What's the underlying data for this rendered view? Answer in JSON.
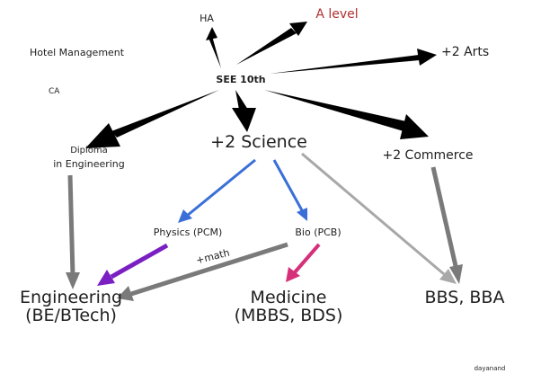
{
  "labels": {
    "ha": "HA",
    "a_level": "A level",
    "hotel_management": "Hotel Management",
    "ca": "CA",
    "see10": "SEE 10th",
    "plus2_arts": "+2 Arts",
    "plus2_science": "+2 Science",
    "diploma_line1": "Diploma",
    "diploma_line2": "in Engineering",
    "plus2_commerce": "+2 Commerce",
    "physics": "Physics (PCM)",
    "bio": "Bio (PCB)",
    "plus_math": "+math",
    "engineering_line1": "Engineering",
    "engineering_line2": "(BE/BTech)",
    "medicine_line1": "Medicine",
    "medicine_line2": "(MBBS, BDS)",
    "bbs": "BBS, BBA",
    "signature": "dayanand"
  },
  "colors": {
    "text": "#1e1e1e",
    "a_level": "#b03030",
    "black_arrow": "#000000",
    "blue_arrow": "#3a6fd8",
    "purple_arrow": "#7a1fc2",
    "pink_arrow": "#d6307a",
    "gray_arrow": "#7a7a7a",
    "light_gray_arrow": "#a8a8a8"
  },
  "edges": [
    {
      "from": "SEE 10th",
      "to": "HA",
      "color": "black_arrow"
    },
    {
      "from": "SEE 10th",
      "to": "A level",
      "color": "black_arrow"
    },
    {
      "from": "SEE 10th",
      "to": "+2 Arts",
      "color": "black_arrow"
    },
    {
      "from": "SEE 10th",
      "to": "Diploma in Engineering",
      "color": "black_arrow"
    },
    {
      "from": "SEE 10th",
      "to": "+2 Science",
      "color": "black_arrow"
    },
    {
      "from": "SEE 10th",
      "to": "+2 Commerce",
      "color": "black_arrow"
    },
    {
      "from": "+2 Science",
      "to": "Physics (PCM)",
      "color": "blue_arrow"
    },
    {
      "from": "+2 Science",
      "to": "Bio (PCB)",
      "color": "blue_arrow"
    },
    {
      "from": "+2 Science",
      "to": "BBS, BBA",
      "color": "light_gray_arrow"
    },
    {
      "from": "Physics (PCM)",
      "to": "Engineering (BE/BTech)",
      "color": "purple_arrow"
    },
    {
      "from": "Bio (PCB)",
      "to": "Engineering (BE/BTech)",
      "color": "gray_arrow",
      "label": "+math"
    },
    {
      "from": "Bio (PCB)",
      "to": "Medicine (MBBS, BDS)",
      "color": "pink_arrow"
    },
    {
      "from": "Diploma in Engineering",
      "to": "Engineering (BE/BTech)",
      "color": "gray_arrow"
    },
    {
      "from": "+2 Commerce",
      "to": "BBS, BBA",
      "color": "gray_arrow"
    }
  ]
}
